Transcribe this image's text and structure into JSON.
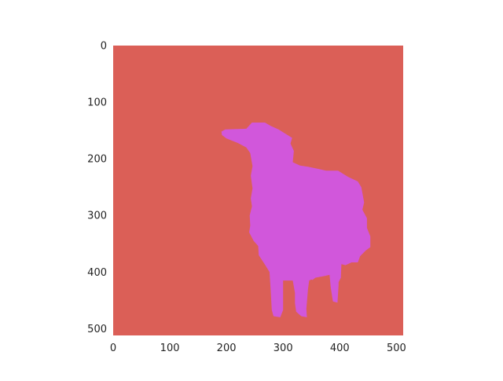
{
  "image": {
    "colors": {
      "background_class": "#db5f57",
      "foreground_class": "#d157db",
      "figure_bg": "#ffffff",
      "tick_text": "#222222"
    },
    "axes": {
      "x_ticks": [
        "0",
        "100",
        "200",
        "300",
        "400",
        "500"
      ],
      "y_ticks": [
        "0",
        "100",
        "200",
        "300",
        "400",
        "500"
      ],
      "x_range": [
        0,
        512
      ],
      "y_range": [
        0,
        512
      ]
    },
    "segments": [
      {
        "name": "sheep",
        "outline": [
          [
            198,
            148
          ],
          [
            235,
            147
          ],
          [
            245,
            136
          ],
          [
            268,
            136
          ],
          [
            278,
            142
          ],
          [
            292,
            148
          ],
          [
            316,
            163
          ],
          [
            313,
            173
          ],
          [
            319,
            186
          ],
          [
            317,
            206
          ],
          [
            330,
            212
          ],
          [
            344,
            214
          ],
          [
            363,
            218
          ],
          [
            376,
            221
          ],
          [
            397,
            221
          ],
          [
            415,
            232
          ],
          [
            432,
            240
          ],
          [
            438,
            250
          ],
          [
            443,
            277
          ],
          [
            440,
            290
          ],
          [
            448,
            305
          ],
          [
            448,
            322
          ],
          [
            454,
            337
          ],
          [
            454,
            356
          ],
          [
            446,
            362
          ],
          [
            436,
            372
          ],
          [
            432,
            383
          ],
          [
            421,
            383
          ],
          [
            410,
            388
          ],
          [
            403,
            386
          ],
          [
            402,
            410
          ],
          [
            398,
            418
          ],
          [
            398,
            423
          ],
          [
            396,
            454
          ],
          [
            388,
            452
          ],
          [
            384,
            427
          ],
          [
            382,
            405
          ],
          [
            374,
            407
          ],
          [
            357,
            410
          ],
          [
            352,
            414
          ],
          [
            350,
            413
          ],
          [
            346,
            415
          ],
          [
            344,
            430
          ],
          [
            341,
            465
          ],
          [
            342,
            480
          ],
          [
            332,
            478
          ],
          [
            323,
            470
          ],
          [
            321,
            455
          ],
          [
            321,
            437
          ],
          [
            317,
            415
          ],
          [
            300,
            415
          ],
          [
            300,
            440
          ],
          [
            300,
            467
          ],
          [
            295,
            480
          ],
          [
            283,
            478
          ],
          [
            280,
            467
          ],
          [
            279,
            450
          ],
          [
            278,
            432
          ],
          [
            276,
            400
          ],
          [
            268,
            387
          ],
          [
            257,
            370
          ],
          [
            256,
            354
          ],
          [
            248,
            345
          ],
          [
            240,
            330
          ],
          [
            242,
            318
          ],
          [
            241,
            300
          ],
          [
            245,
            284
          ],
          [
            243,
            270
          ],
          [
            246,
            252
          ],
          [
            243,
            230
          ],
          [
            246,
            213
          ],
          [
            242,
            190
          ],
          [
            235,
            180
          ],
          [
            220,
            172
          ],
          [
            200,
            164
          ],
          [
            192,
            158
          ],
          [
            191,
            152
          ]
        ]
      }
    ]
  }
}
